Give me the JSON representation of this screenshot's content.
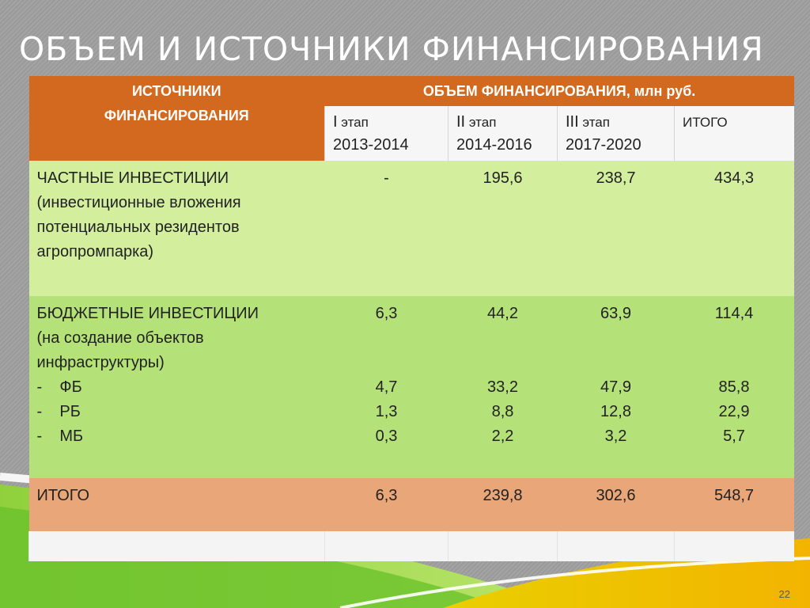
{
  "title": "ОБЪЕМ И ИСТОЧНИКИ ФИНАНСИРОВАНИЯ",
  "page_number": "22",
  "header": {
    "source_col": "ИСТОЧНИКИ ФИНАНСИРОВАНИЯ",
    "volume": "ОБЪЕМ ФИНАНСИРОВАНИЯ, млн руб.",
    "stages": [
      {
        "name_num": "I",
        "name_word": " этап",
        "years": "2013-2014"
      },
      {
        "name_num": "II",
        "name_word": " этап",
        "years": "2014-2016"
      },
      {
        "name_num": "III",
        "name_word": " этап",
        "years": "2017-2020"
      },
      {
        "name_num": "ИТОГО",
        "name_word": "",
        "years": ""
      }
    ]
  },
  "rows": {
    "private": {
      "title": "ЧАСТНЫЕ ИНВЕСТИЦИИ",
      "desc": "(инвестиционные вложения потенциальных резидентов агропромпарка)",
      "values": [
        "-",
        "195,6",
        "238,7",
        "434,3"
      ]
    },
    "budget": {
      "title": "БЮДЖЕТНЫЕ ИНВЕСТИЦИИ",
      "desc": "(на создание объектов инфраструктуры)",
      "values": [
        "6,3",
        "44,2",
        "63,9",
        "114,4"
      ],
      "sub": [
        {
          "label": "-    ФБ",
          "values": [
            "4,7",
            "33,2",
            "47,9",
            "85,8"
          ]
        },
        {
          "label": "-    РБ",
          "values": [
            "1,3",
            "8,8",
            "12,8",
            "22,9"
          ]
        },
        {
          "label": "-    МБ",
          "values": [
            "0,3",
            "2,2",
            "3,2",
            "5,7"
          ]
        }
      ]
    },
    "total": {
      "title": "ИТОГО",
      "values": [
        "6,3",
        "239,8",
        "302,6",
        "548,7"
      ]
    }
  },
  "colors": {
    "header": "#d2691e",
    "row_private": "#d3ef9e",
    "row_budget": "#b5e179",
    "row_total": "#e8a679"
  }
}
